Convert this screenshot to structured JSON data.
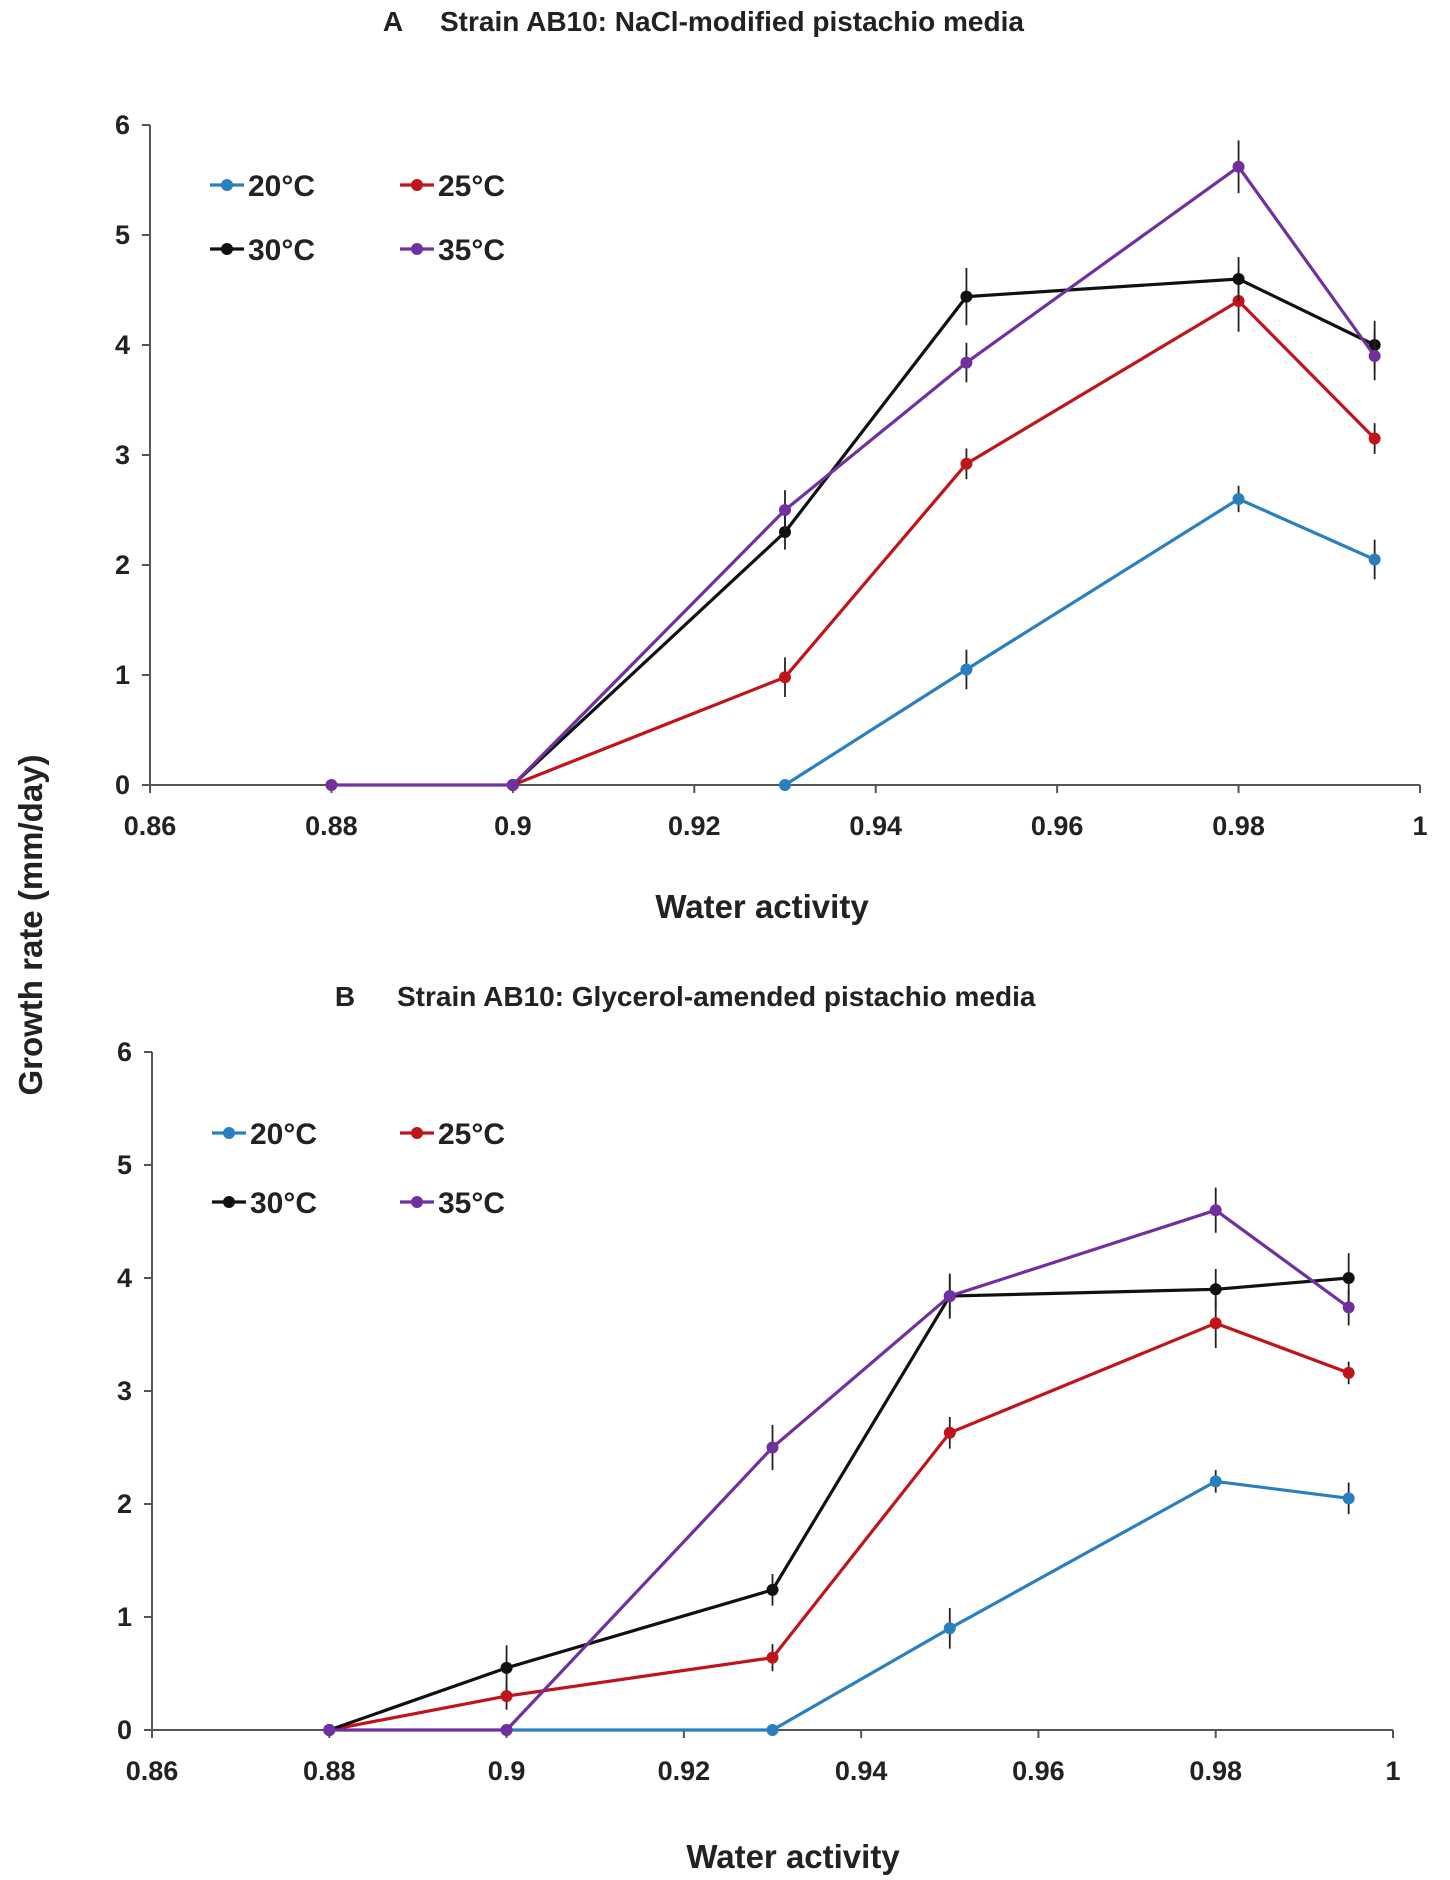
{
  "ylabel_shared": "Growth rate (mm/day)",
  "series_style": [
    {
      "name": "20°C",
      "color": "#2a7fbf"
    },
    {
      "name": "25°C",
      "color": "#c0141b"
    },
    {
      "name": "30°C",
      "color": "#111111"
    },
    {
      "name": "35°C",
      "color": "#7030a0"
    }
  ],
  "chart_data": [
    {
      "type": "line",
      "panel": "A",
      "title": "Strain AB10: NaCl-modified pistachio media",
      "xlabel": "Water activity",
      "ylabel": "Growth rate (mm/day)",
      "xlim": [
        0.86,
        1.0
      ],
      "ylim": [
        0,
        6
      ],
      "x_ticks": [
        "0.86",
        "0.88",
        "0.9",
        "0.92",
        "0.94",
        "0.96",
        "0.98",
        "1"
      ],
      "y_ticks": [
        "0",
        "1",
        "2",
        "3",
        "4",
        "5",
        "6"
      ],
      "legend_position": "top-left",
      "series": [
        {
          "name": "20°C",
          "x": [
            0.93,
            0.95,
            0.98,
            0.995
          ],
          "values": [
            0,
            1.05,
            2.6,
            2.05
          ],
          "errors": [
            0,
            0.18,
            0.12,
            0.18
          ]
        },
        {
          "name": "25°C",
          "x": [
            0.9,
            0.93,
            0.95,
            0.98,
            0.995
          ],
          "values": [
            0,
            0.98,
            2.92,
            4.4,
            3.15
          ],
          "errors": [
            0,
            0.18,
            0.14,
            0.28,
            0.14
          ]
        },
        {
          "name": "30°C",
          "x": [
            0.9,
            0.93,
            0.95,
            0.98,
            0.995
          ],
          "values": [
            0,
            2.3,
            4.44,
            4.6,
            4.0
          ],
          "errors": [
            0,
            0.16,
            0.26,
            0.2,
            0.22
          ]
        },
        {
          "name": "35°C",
          "x": [
            0.88,
            0.9,
            0.93,
            0.95,
            0.98,
            0.995
          ],
          "values": [
            0,
            0,
            2.5,
            3.84,
            5.62,
            3.9
          ],
          "errors": [
            0,
            0,
            0.18,
            0.18,
            0.24,
            0.22
          ]
        }
      ]
    },
    {
      "type": "line",
      "panel": "B",
      "title": "Strain AB10: Glycerol-amended pistachio media",
      "xlabel": "Water activity",
      "ylabel": "Growth rate (mm/day)",
      "xlim": [
        0.86,
        1.0
      ],
      "ylim": [
        0,
        6
      ],
      "x_ticks": [
        "0.86",
        "0.88",
        "0.9",
        "0.92",
        "0.94",
        "0.96",
        "0.98",
        "1"
      ],
      "y_ticks": [
        "0",
        "1",
        "2",
        "3",
        "4",
        "5",
        "6"
      ],
      "legend_position": "top-left",
      "series": [
        {
          "name": "20°C",
          "x": [
            0.9,
            0.93,
            0.95,
            0.98,
            0.995
          ],
          "values": [
            0,
            0,
            0.9,
            2.2,
            2.05
          ],
          "errors": [
            0,
            0,
            0.18,
            0.1,
            0.14
          ]
        },
        {
          "name": "25°C",
          "x": [
            0.88,
            0.9,
            0.93,
            0.95,
            0.98,
            0.995
          ],
          "values": [
            0,
            0.3,
            0.64,
            2.63,
            3.6,
            3.16
          ],
          "errors": [
            0,
            0.12,
            0.12,
            0.14,
            0.22,
            0.1
          ]
        },
        {
          "name": "30°C",
          "x": [
            0.88,
            0.9,
            0.93,
            0.95,
            0.98,
            0.995
          ],
          "values": [
            0,
            0.55,
            1.24,
            3.84,
            3.9,
            4.0
          ],
          "errors": [
            0,
            0.2,
            0.14,
            0.2,
            0.18,
            0.22
          ]
        },
        {
          "name": "35°C",
          "x": [
            0.88,
            0.9,
            0.93,
            0.95,
            0.98,
            0.995
          ],
          "values": [
            0,
            0,
            2.5,
            3.84,
            4.6,
            3.74
          ],
          "errors": [
            0,
            0,
            0.2,
            0.18,
            0.2,
            0.16
          ]
        }
      ]
    }
  ]
}
